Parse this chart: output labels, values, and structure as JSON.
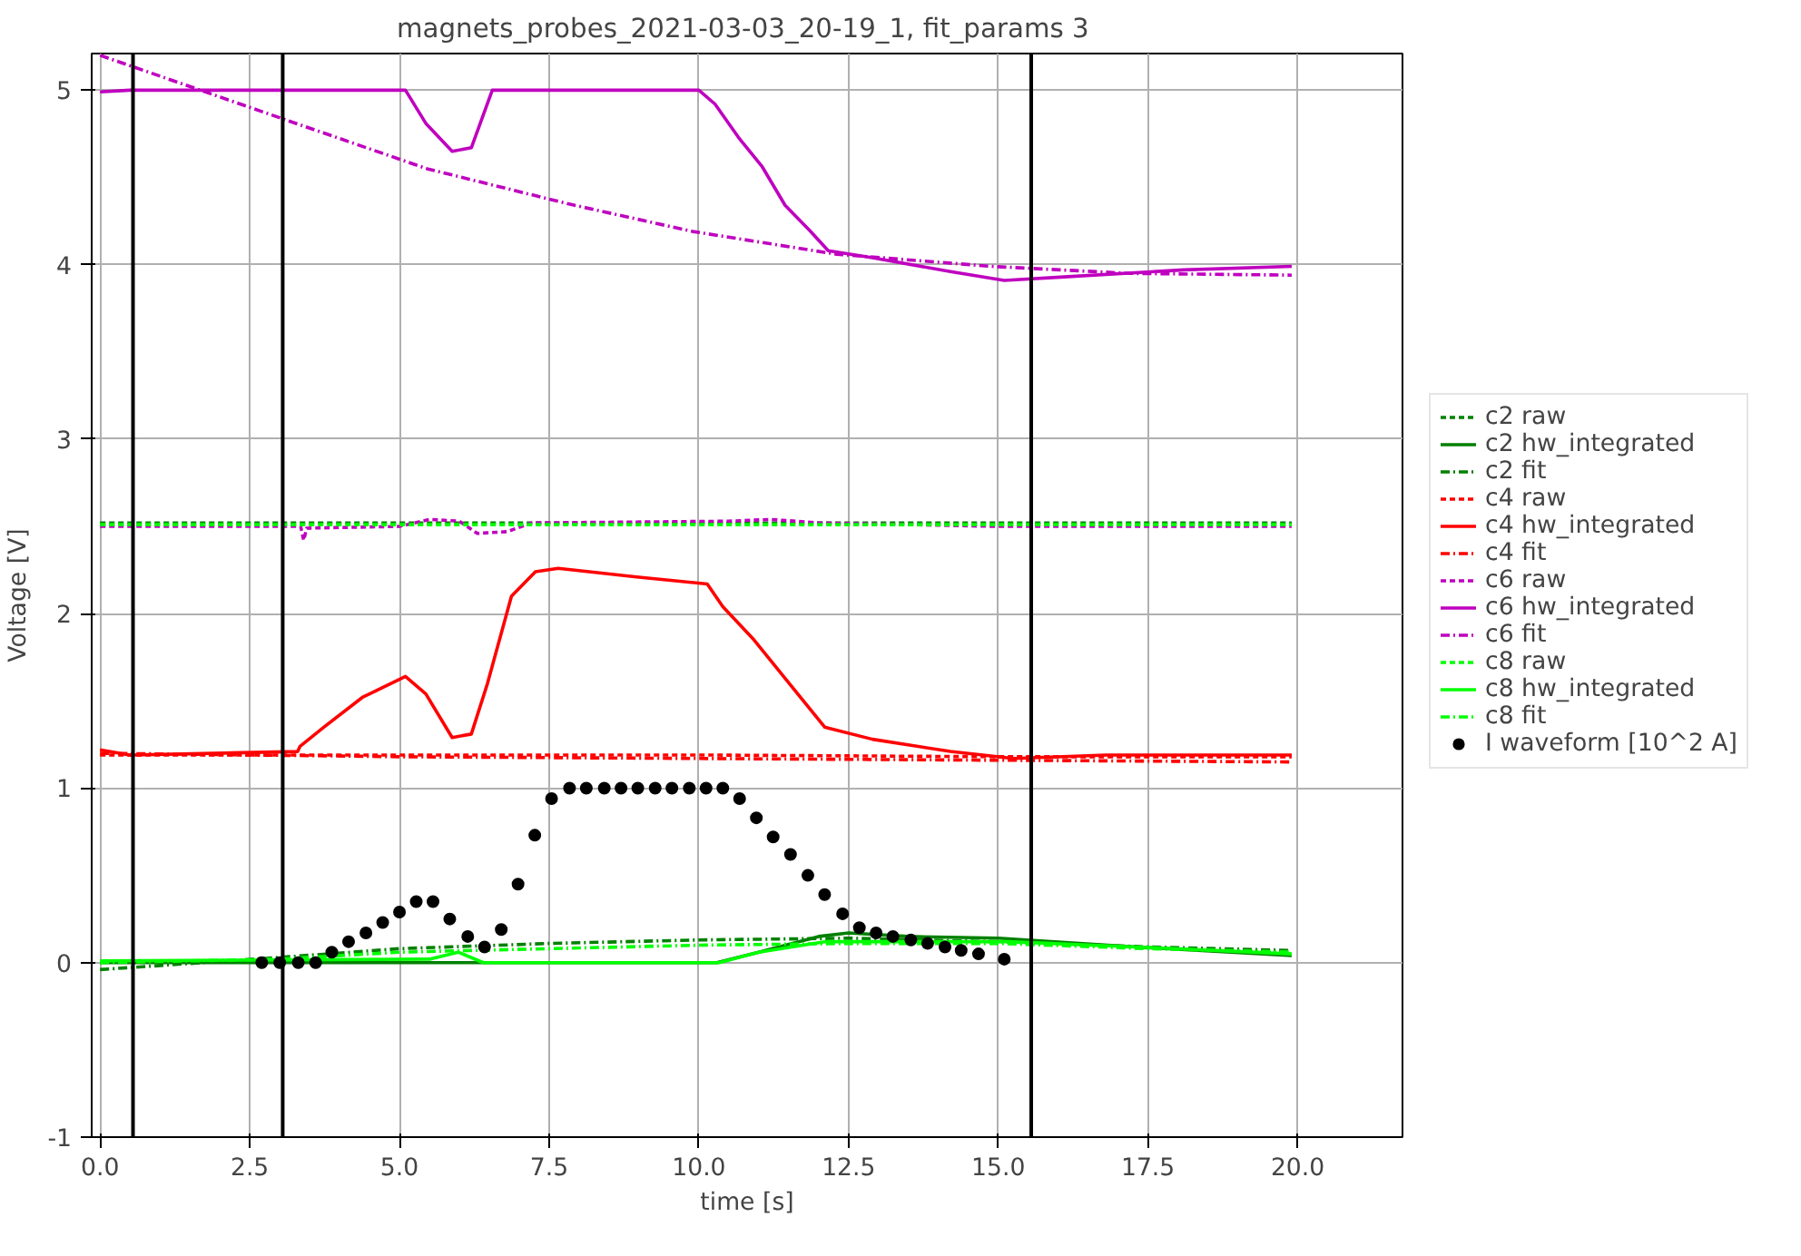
{
  "chart_data": {
    "type": "line",
    "title": "magnets_probes_2021-03-03_20-19_1,  fit_params 3",
    "xlabel": "time [s]",
    "ylabel": "Voltage [V]",
    "xlim": [
      -0.14,
      21.75
    ],
    "ylim": [
      -1,
      5.21
    ],
    "xticks": [
      {
        "value": 0,
        "label": "0.0"
      },
      {
        "value": 2.5,
        "label": "2.5"
      },
      {
        "value": 5,
        "label": "5.0"
      },
      {
        "value": 7.5,
        "label": "7.5"
      },
      {
        "value": 10,
        "label": "10.0"
      },
      {
        "value": 12.5,
        "label": "12.5"
      },
      {
        "value": 15,
        "label": "15.0"
      },
      {
        "value": 17.5,
        "label": "17.5"
      },
      {
        "value": 20,
        "label": "20.0"
      }
    ],
    "yticks": [
      -1,
      0,
      1,
      2,
      3,
      4,
      5
    ],
    "grid": true,
    "legend": "right",
    "ref_lines": [
      {
        "axis": "x",
        "value": 0.55,
        "color": "#000000"
      },
      {
        "axis": "x",
        "value": 3.05,
        "color": "#000000"
      },
      {
        "axis": "x",
        "value": 15.55,
        "color": "#000000"
      }
    ],
    "series": [
      {
        "name": "c2 raw",
        "color": "#008000",
        "line_style": "dashed",
        "x": [
          0,
          5,
          10,
          15,
          19.9
        ],
        "values": [
          2.52,
          2.52,
          2.52,
          2.52,
          2.52
        ]
      },
      {
        "name": "c2 hw_integrated",
        "color": "#008000",
        "line_style": "solid",
        "x": [
          0,
          10.3,
          11,
          12,
          12.5,
          13.5,
          15,
          17.3,
          19.9
        ],
        "values": [
          0.0,
          0.0,
          0.06,
          0.15,
          0.17,
          0.15,
          0.14,
          0.09,
          0.04
        ]
      },
      {
        "name": "c2 fit",
        "color": "#008000",
        "line_style": "dashdot",
        "x": [
          0,
          3,
          5,
          7.5,
          10,
          12.5,
          15,
          17.5,
          19.9
        ],
        "values": [
          -0.04,
          0.03,
          0.08,
          0.11,
          0.13,
          0.14,
          0.12,
          0.09,
          0.07
        ]
      },
      {
        "name": "c4 raw",
        "color": "#ff0000",
        "line_style": "dashed",
        "x": [
          0,
          5,
          10,
          15,
          19.9
        ],
        "values": [
          1.19,
          1.19,
          1.19,
          1.18,
          1.18
        ]
      },
      {
        "name": "c4 hw_integrated",
        "color": "#ff0000",
        "line_style": "solid",
        "x": [
          0,
          0.5,
          3.3,
          3.34,
          3.74,
          4.38,
          5.1,
          5.44,
          5.88,
          6.2,
          6.47,
          6.87,
          7.27,
          7.65,
          8.96,
          10.14,
          10.4,
          10.92,
          11.58,
          12.1,
          12.9,
          14.2,
          15.25,
          16.8,
          19.9
        ],
        "values": [
          1.22,
          1.19,
          1.21,
          1.24,
          1.35,
          1.52,
          1.64,
          1.54,
          1.29,
          1.31,
          1.6,
          2.1,
          2.24,
          2.26,
          2.21,
          2.17,
          2.04,
          1.85,
          1.57,
          1.35,
          1.28,
          1.21,
          1.17,
          1.19,
          1.19
        ]
      },
      {
        "name": "c4 fit",
        "color": "#ff0000",
        "line_style": "dashdot",
        "x": [
          0,
          5,
          10,
          15,
          19.9
        ],
        "values": [
          1.2,
          1.18,
          1.17,
          1.16,
          1.15
        ]
      },
      {
        "name": "c6 raw",
        "color": "#bf00bf",
        "line_style": "dashed",
        "x": [
          0,
          3.35,
          3.4,
          3.45,
          5.0,
          5.5,
          6.0,
          6.3,
          6.8,
          7.2,
          10.5,
          11.2,
          12.0,
          15,
          19.9
        ],
        "values": [
          2.5,
          2.5,
          2.42,
          2.49,
          2.5,
          2.54,
          2.53,
          2.46,
          2.47,
          2.52,
          2.53,
          2.54,
          2.52,
          2.5,
          2.5
        ]
      },
      {
        "name": "c6 hw_integrated",
        "color": "#bf00bf",
        "line_style": "solid",
        "x": [
          0,
          0.5,
          5.1,
          5.44,
          5.88,
          6.2,
          6.55,
          10.0,
          10.27,
          10.66,
          11.06,
          11.44,
          11.84,
          12.16,
          12.9,
          14.2,
          15.1,
          16.1,
          18.1,
          19.9
        ],
        "values": [
          4.99,
          5.0,
          5.0,
          4.81,
          4.65,
          4.67,
          5.0,
          5.0,
          4.92,
          4.73,
          4.56,
          4.34,
          4.2,
          4.08,
          4.04,
          3.96,
          3.91,
          3.93,
          3.97,
          3.99
        ]
      },
      {
        "name": "c6 fit",
        "color": "#bf00bf",
        "line_style": "dashdot",
        "x": [
          0,
          3.1,
          5.46,
          7.8,
          9.9,
          12.3,
          14.9,
          17.2,
          19.9
        ],
        "values": [
          5.2,
          4.83,
          4.55,
          4.35,
          4.19,
          4.06,
          3.99,
          3.95,
          3.94
        ]
      },
      {
        "name": "c8 raw",
        "color": "#00ff00",
        "line_style": "dashed",
        "x": [
          0,
          5,
          10,
          15,
          19.9
        ],
        "values": [
          2.51,
          2.51,
          2.51,
          2.51,
          2.51
        ]
      },
      {
        "name": "c8 hw_integrated",
        "color": "#00ff00",
        "line_style": "solid",
        "x": [
          0,
          5.5,
          5.98,
          6.4,
          10.34,
          11.0,
          12.1,
          13.25,
          15.15,
          17.3,
          19.9
        ],
        "values": [
          0.01,
          0.02,
          0.06,
          0.0,
          0.0,
          0.06,
          0.12,
          0.12,
          0.12,
          0.09,
          0.05
        ]
      },
      {
        "name": "c8 fit",
        "color": "#00ff00",
        "line_style": "dashdot",
        "x": [
          0,
          3,
          5,
          7.5,
          10,
          12.5,
          15,
          17.5,
          19.9
        ],
        "values": [
          0.0,
          0.02,
          0.06,
          0.08,
          0.1,
          0.11,
          0.11,
          0.08,
          0.06
        ]
      },
      {
        "name": "I waveform [10^2 A]",
        "type": "scatter",
        "marker": "circle",
        "color": "#000000",
        "x": [
          2.7,
          3.0,
          3.31,
          3.6,
          3.87,
          4.15,
          4.44,
          4.72,
          5.0,
          5.28,
          5.56,
          5.84,
          6.14,
          6.42,
          6.7,
          6.98,
          7.26,
          7.54,
          7.84,
          8.12,
          8.42,
          8.7,
          8.98,
          9.27,
          9.55,
          9.84,
          10.12,
          10.4,
          10.68,
          10.96,
          11.24,
          11.53,
          11.82,
          12.1,
          12.4,
          12.68,
          12.96,
          13.24,
          13.54,
          13.82,
          14.11,
          14.38,
          14.67,
          15.1
        ],
        "values": [
          0.0,
          0.0,
          0.0,
          0.0,
          0.06,
          0.12,
          0.17,
          0.23,
          0.29,
          0.35,
          0.35,
          0.25,
          0.15,
          0.09,
          0.19,
          0.45,
          0.73,
          0.94,
          1.0,
          1.0,
          1.0,
          1.0,
          1.0,
          1.0,
          1.0,
          1.0,
          1.0,
          1.0,
          0.94,
          0.83,
          0.72,
          0.62,
          0.5,
          0.39,
          0.28,
          0.2,
          0.17,
          0.15,
          0.13,
          0.11,
          0.09,
          0.07,
          0.05,
          0.02
        ]
      }
    ]
  }
}
